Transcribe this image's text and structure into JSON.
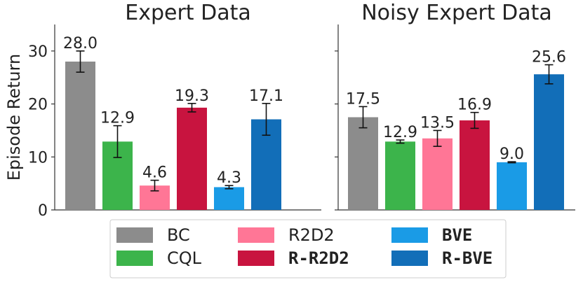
{
  "chart_data": [
    {
      "type": "bar",
      "title": "Expert Data",
      "ylabel": "Episode Return",
      "xlabel": "",
      "ylim": [
        0,
        35
      ],
      "yticks": [
        0,
        10,
        20,
        30
      ],
      "categories": [
        "BC",
        "CQL",
        "R2D2",
        "R-R2D2",
        "BVE",
        "R-BVE"
      ],
      "values": [
        28.0,
        12.9,
        4.6,
        19.3,
        4.3,
        17.1
      ],
      "value_labels": [
        "28.0",
        "12.9",
        "4.6",
        "19.3",
        "4.3",
        "17.1"
      ],
      "errors": [
        2.0,
        3.0,
        1.0,
        0.8,
        0.3,
        3.0
      ]
    },
    {
      "type": "bar",
      "title": "Noisy Expert Data",
      "ylabel": "",
      "xlabel": "",
      "ylim": [
        0,
        35
      ],
      "yticks": [
        0,
        10,
        20,
        30
      ],
      "categories": [
        "BC",
        "CQL",
        "R2D2",
        "R-R2D2",
        "BVE",
        "R-BVE"
      ],
      "values": [
        17.5,
        12.9,
        13.5,
        16.9,
        9.0,
        25.6
      ],
      "value_labels": [
        "17.5",
        "12.9",
        "13.5",
        "16.9",
        "9.0",
        "25.6"
      ],
      "errors": [
        2.0,
        0.3,
        1.5,
        1.5,
        0.1,
        1.8
      ]
    }
  ],
  "legend": {
    "placement": "bottom-center",
    "entries": [
      {
        "label": "BC",
        "color": "#8c8c8c",
        "bold_mono": false
      },
      {
        "label": "CQL",
        "color": "#3cb44b",
        "bold_mono": false
      },
      {
        "label": "R2D2",
        "color": "#ff7696",
        "bold_mono": false
      },
      {
        "label": "R-R2D2",
        "color": "#c8143f",
        "bold_mono": true
      },
      {
        "label": "BVE",
        "color": "#1a9be6",
        "bold_mono": true
      },
      {
        "label": "R-BVE",
        "color": "#126eb8",
        "bold_mono": true
      }
    ]
  },
  "colors": [
    "#8c8c8c",
    "#3cb44b",
    "#ff7696",
    "#c8143f",
    "#1a9be6",
    "#126eb8"
  ]
}
